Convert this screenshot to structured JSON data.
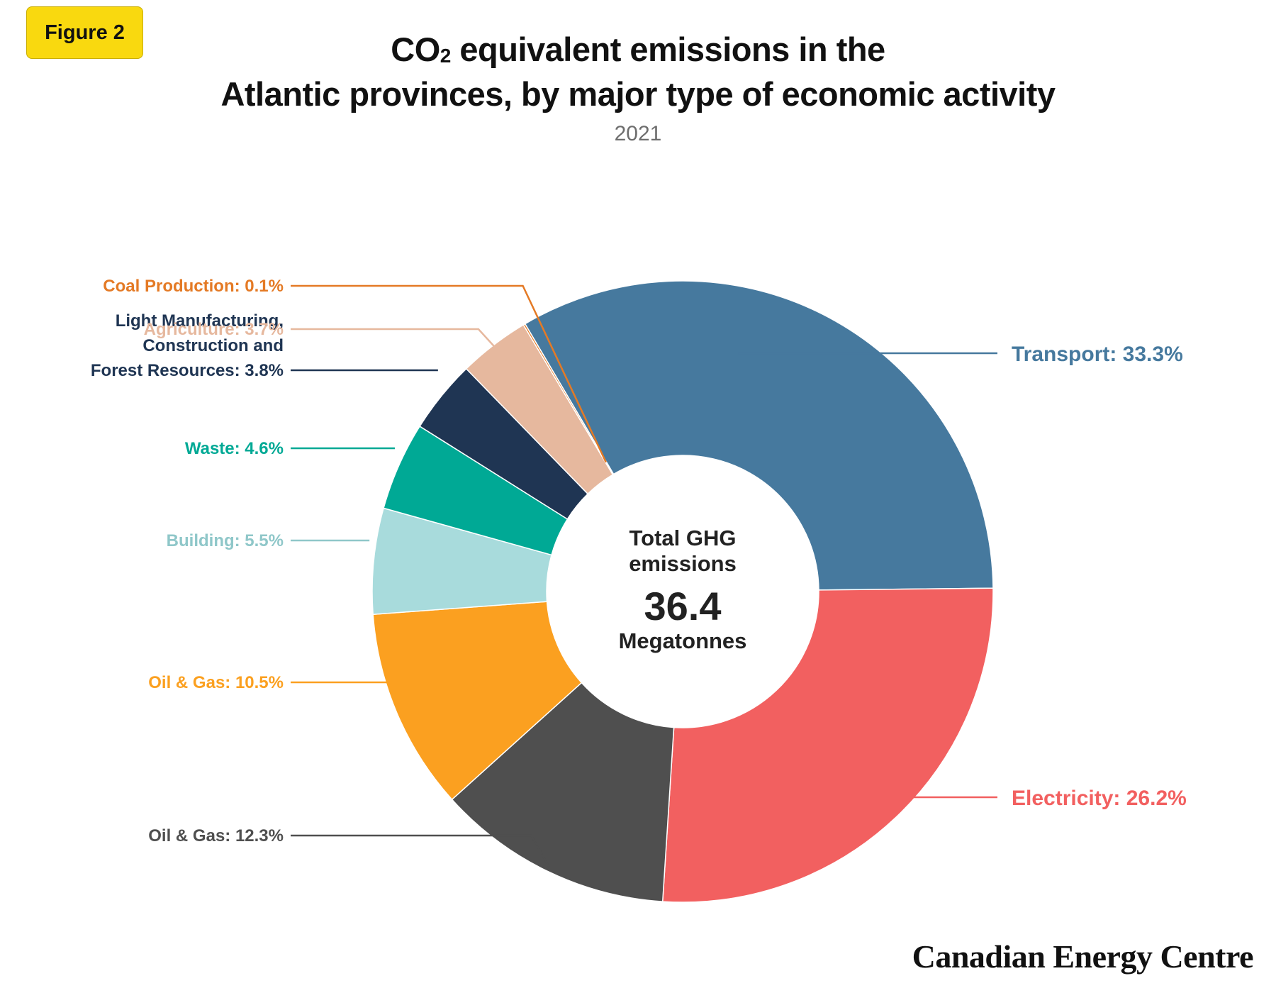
{
  "badge": {
    "label": "Figure 2"
  },
  "header": {
    "title_line1_pre": "CO",
    "title_line1_sub": "2",
    "title_line1_post": " equivalent emissions in the",
    "title_line2": "Atlantic provinces, by major type of economic activity",
    "subtitle": "2021"
  },
  "center": {
    "line1": "Total GHG",
    "line2": "emissions",
    "value": "36.4",
    "unit": "Megatonnes"
  },
  "brand": "Canadian Energy Centre",
  "chart_data": {
    "type": "pie",
    "donut": true,
    "title": "CO2 equivalent emissions in the Atlantic provinces, by major type of economic activity",
    "subtitle": "2021",
    "total": "36.4 Megatonnes",
    "slices": [
      {
        "label": "Transport: 33.3%",
        "name": "Transport",
        "value": 33.3,
        "color": "#46799e",
        "side": "right"
      },
      {
        "label": "Electricity: 26.2%",
        "name": "Electricity",
        "value": 26.2,
        "color": "#f26060",
        "side": "right"
      },
      {
        "label": "Oil & Gas: 12.3%",
        "name": "Oil & Gas",
        "value": 12.3,
        "color": "#4f4f4f",
        "side": "left",
        "label_color": "#4f4f4f"
      },
      {
        "label": "Oil & Gas: 10.5%",
        "name": "Oil & Gas",
        "value": 10.5,
        "color": "#fba020",
        "side": "left"
      },
      {
        "label": "Building: 5.5%",
        "name": "Building",
        "value": 5.5,
        "color": "#a8dbdc",
        "side": "left",
        "label_color": "#8fc7c9"
      },
      {
        "label": "Waste: 4.6%",
        "name": "Waste",
        "value": 4.6,
        "color": "#00a995",
        "side": "left"
      },
      {
        "label_lines": [
          "Light Manufacturing,",
          "Construction and",
          "Forest Resources: 3.8%"
        ],
        "name": "Light Manufacturing, Construction and Forest Resources",
        "value": 3.8,
        "color": "#1f3553",
        "side": "left"
      },
      {
        "label": "Agriculture: 3.7%",
        "name": "Agriculture",
        "value": 3.7,
        "color": "#e6b89e",
        "side": "left"
      },
      {
        "label": "Coal Production: 0.1%",
        "name": "Coal Production",
        "value": 0.1,
        "color": "#e47a25",
        "side": "left"
      }
    ]
  }
}
